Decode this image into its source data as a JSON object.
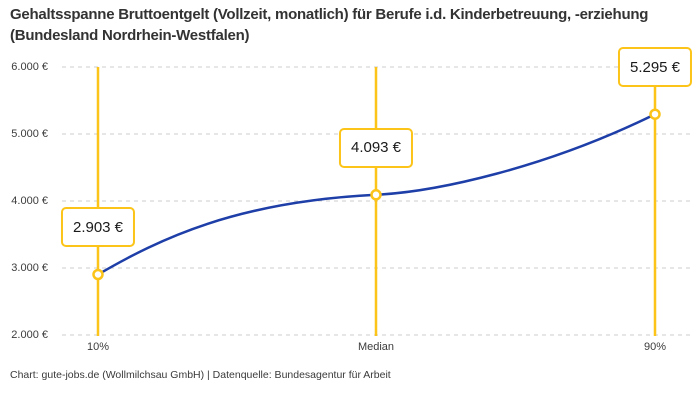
{
  "header": {
    "title": "Gehaltsspanne Bruttoentgelt (Vollzeit, monatlich) für Berufe i.d. Kinderbetreuung, -erziehung (Bundesland Nordrhein-Westfalen)"
  },
  "footer": {
    "source": "Chart: gute-jobs.de (Wollmilchsau GmbH) | Datenquelle: Bundesagentur für Arbeit"
  },
  "chart_data": {
    "type": "line",
    "title": "Gehaltsspanne Bruttoentgelt (Vollzeit, monatlich) für Berufe i.d. Kinderbetreuung, -erziehung (Bundesland Nordrhein-Westfalen)",
    "categories": [
      "10%",
      "Median",
      "90%"
    ],
    "values": [
      2903,
      4093,
      5295
    ],
    "point_labels": [
      "2.903 €",
      "4.093 €",
      "5.295 €"
    ],
    "ylim": [
      2000,
      6000
    ],
    "ytick_values": [
      2000,
      3000,
      4000,
      5000,
      6000
    ],
    "ytick_labels": [
      "2.000 €",
      "3.000 €",
      "4.000 €",
      "5.000 €",
      "6.000 €"
    ],
    "grid": "horizontal-dashed",
    "legend": "none",
    "colors": {
      "line": "#1E3EA8",
      "highlight": "#FCC419",
      "grid": "#CCCCCC",
      "text": "#333333"
    },
    "source": "Chart: gute-jobs.de (Wollmilchsau GmbH) | Datenquelle: Bundesagentur für Arbeit"
  }
}
